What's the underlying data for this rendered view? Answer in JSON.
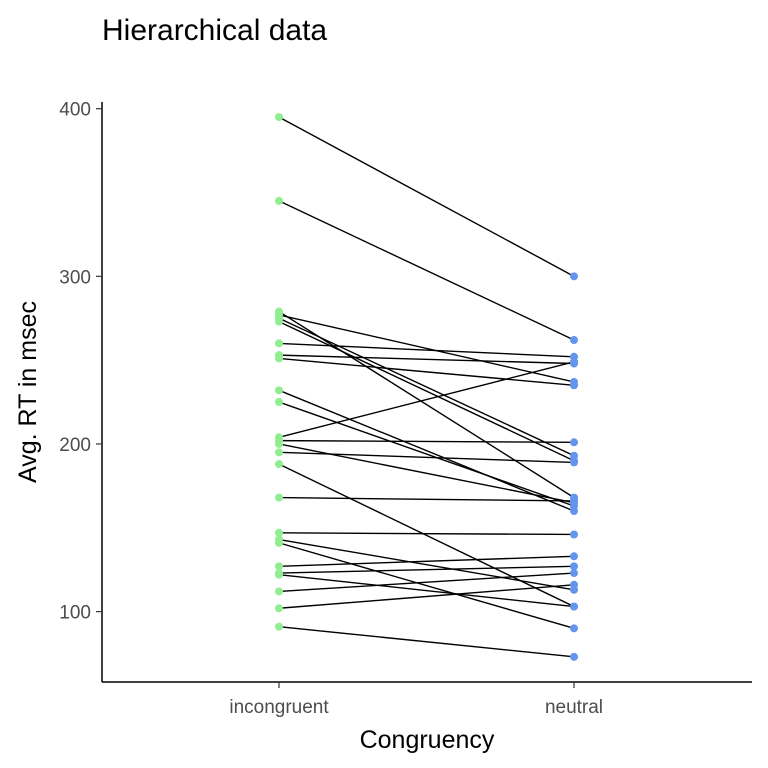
{
  "chart_data": {
    "type": "line",
    "title": "Hierarchical data",
    "xlabel": "Congruency",
    "ylabel": "Avg. RT in msec",
    "categories": [
      "incongruent",
      "neutral"
    ],
    "ylim": [
      58,
      404
    ],
    "yticks": [
      100,
      200,
      300,
      400
    ],
    "grid": false,
    "legend": "none",
    "colors": {
      "incongruent": "#90ee90",
      "neutral": "#6495ed",
      "line": "#000000"
    },
    "pairs": [
      {
        "incongruent": 395,
        "neutral": 300
      },
      {
        "incongruent": 345,
        "neutral": 262
      },
      {
        "incongruent": 279,
        "neutral": 168
      },
      {
        "incongruent": 277,
        "neutral": 237
      },
      {
        "incongruent": 275,
        "neutral": 193
      },
      {
        "incongruent": 273,
        "neutral": 190
      },
      {
        "incongruent": 260,
        "neutral": 252
      },
      {
        "incongruent": 253,
        "neutral": 248
      },
      {
        "incongruent": 251,
        "neutral": 235
      },
      {
        "incongruent": 232,
        "neutral": 160
      },
      {
        "incongruent": 225,
        "neutral": 163
      },
      {
        "incongruent": 204,
        "neutral": 249
      },
      {
        "incongruent": 202,
        "neutral": 201
      },
      {
        "incongruent": 200,
        "neutral": 165
      },
      {
        "incongruent": 195,
        "neutral": 189
      },
      {
        "incongruent": 188,
        "neutral": 103
      },
      {
        "incongruent": 168,
        "neutral": 166
      },
      {
        "incongruent": 147,
        "neutral": 146
      },
      {
        "incongruent": 143,
        "neutral": 113
      },
      {
        "incongruent": 141,
        "neutral": 90
      },
      {
        "incongruent": 127,
        "neutral": 133
      },
      {
        "incongruent": 123,
        "neutral": 127
      },
      {
        "incongruent": 122,
        "neutral": 103
      },
      {
        "incongruent": 112,
        "neutral": 123
      },
      {
        "incongruent": 102,
        "neutral": 116
      },
      {
        "incongruent": 91,
        "neutral": 73
      }
    ]
  }
}
